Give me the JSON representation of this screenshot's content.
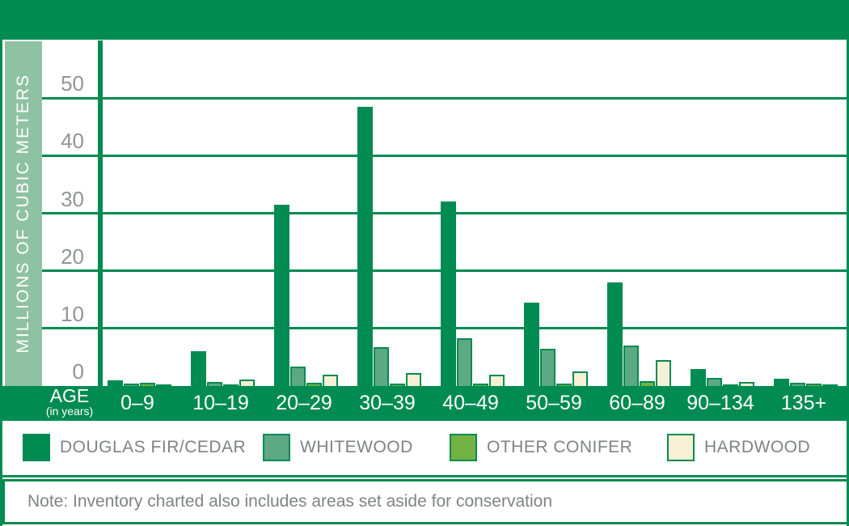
{
  "colors": {
    "frame_green": "#008B52",
    "sidebar_green": "#8FC2A3",
    "axis_text_gray": "#929497",
    "legend_text_gray": "#808285",
    "background": "#FFFFFF"
  },
  "sidebar": {
    "y_axis_title": "MILLIONS OF CUBIC METERS"
  },
  "x_axis": {
    "label": "AGE",
    "sublabel": "(in years)"
  },
  "chart_data": {
    "type": "bar",
    "title": "",
    "xlabel": "AGE (in years)",
    "ylabel": "MILLIONS OF CUBIC METERS",
    "categories": [
      "0–9",
      "10–19",
      "20–29",
      "30–39",
      "40–49",
      "50–59",
      "60–89",
      "90–134",
      "135+"
    ],
    "y_ticks": [
      0,
      10,
      20,
      30,
      40,
      50
    ],
    "ylim": [
      0,
      60
    ],
    "grid": true,
    "legend_position": "bottom",
    "series": [
      {
        "name": "DOUGLAS FIR/CEDAR",
        "color": "#008B52",
        "values": [
          1,
          6,
          31.5,
          48.5,
          32,
          14.5,
          18,
          3,
          1.2
        ]
      },
      {
        "name": "WHITEWOOD",
        "color": "#5CA983",
        "values": [
          0.4,
          0.7,
          3.4,
          6.8,
          8.3,
          6.5,
          7,
          1.4,
          0.6
        ]
      },
      {
        "name": "OTHER CONIFER",
        "color": "#72B343",
        "values": [
          0.6,
          0.3,
          0.5,
          0.4,
          0.4,
          0.4,
          0.8,
          0.3,
          0.4
        ]
      },
      {
        "name": "HARDWOOD",
        "color": "#F6F1D5",
        "values": [
          0.3,
          1.1,
          2.0,
          2.2,
          2.0,
          2.5,
          4.5,
          0.7,
          0.3
        ]
      }
    ]
  },
  "note": {
    "text": "Note: Inventory charted also includes areas set aside for conservation"
  }
}
